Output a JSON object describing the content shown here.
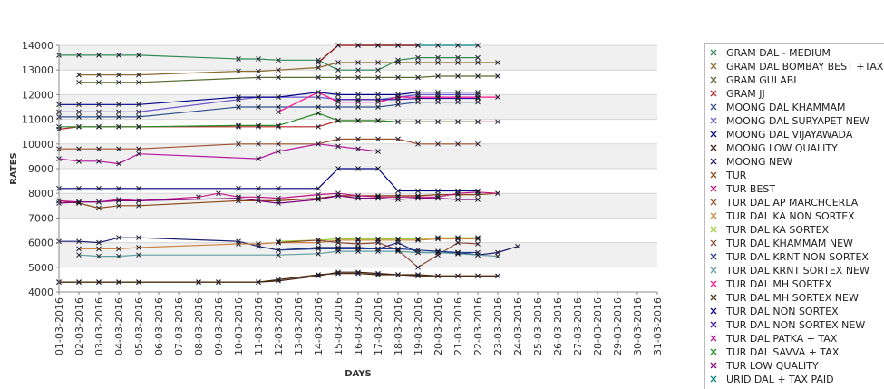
{
  "chart_data": {
    "type": "line",
    "xlabel": "DAYS",
    "ylabel": "RATES",
    "ylim": [
      4000,
      14000
    ],
    "yticks": [
      4000,
      5000,
      6000,
      7000,
      8000,
      9000,
      10000,
      11000,
      12000,
      13000,
      14000
    ],
    "grid": true,
    "legend_position": "right",
    "x": [
      "01-03-2016",
      "02-03-2016",
      "03-03-2016",
      "04-03-2016",
      "05-03-2016",
      "06-03-2016",
      "07-03-2016",
      "08-03-2016",
      "09-03-2016",
      "10-03-2016",
      "11-03-2016",
      "12-03-2016",
      "13-03-2016",
      "14-03-2016",
      "15-03-2016",
      "16-03-2016",
      "17-03-2016",
      "18-03-2016",
      "19-03-2016",
      "20-03-2016",
      "21-03-2016",
      "22-03-2016",
      "23-03-2016",
      "24-03-2016",
      "25-03-2016",
      "26-03-2016",
      "27-03-2016",
      "28-03-2016",
      "29-03-2016",
      "30-03-2016",
      "31-03-2016"
    ],
    "series": [
      {
        "name": "GRAM DAL - MEDIUM",
        "color": "#2e8b57",
        "values": [
          13600,
          13600,
          13600,
          13600,
          13600,
          null,
          null,
          null,
          null,
          13450,
          13450,
          13400,
          null,
          13400,
          13000,
          13000,
          13000,
          13400,
          13500,
          13500,
          13500,
          13500,
          null,
          null,
          null,
          null,
          null,
          null,
          null,
          null,
          null
        ]
      },
      {
        "name": "GRAM DAL BOMBAY BEST +TAX",
        "color": "#8b6b2e",
        "values": [
          null,
          12800,
          12800,
          12800,
          12800,
          null,
          null,
          null,
          null,
          12950,
          12950,
          13000,
          null,
          13100,
          13300,
          13300,
          13300,
          13300,
          13300,
          13300,
          13300,
          13300,
          13300,
          null,
          null,
          null,
          null,
          null,
          null,
          null,
          null
        ]
      },
      {
        "name": "GRAM GULABI",
        "color": "#556b2f",
        "values": [
          null,
          12500,
          12500,
          12500,
          12500,
          null,
          null,
          null,
          null,
          null,
          12700,
          12700,
          null,
          12700,
          12700,
          12700,
          12700,
          12700,
          12700,
          12750,
          12750,
          12750,
          12750,
          null,
          null,
          null,
          null,
          null,
          null,
          null,
          null
        ]
      },
      {
        "name": "GRAM JJ",
        "color": "#b22222",
        "values": [
          10600,
          10700,
          10700,
          10700,
          10700,
          null,
          null,
          null,
          null,
          10700,
          10700,
          10700,
          null,
          10700,
          10950,
          10950,
          10950,
          10900,
          10900,
          10900,
          10900,
          10900,
          10900,
          null,
          null,
          null,
          null,
          null,
          null,
          null,
          null
        ]
      },
      {
        "name": "MOONG DAL KHAMMAM",
        "color": "#2f4f8f",
        "values": [
          11100,
          11100,
          11100,
          11100,
          11100,
          null,
          null,
          null,
          null,
          11500,
          11500,
          11500,
          null,
          11500,
          11500,
          11500,
          11500,
          11600,
          11700,
          11700,
          11700,
          11700,
          null,
          null,
          null,
          null,
          null,
          null,
          null,
          null,
          null
        ]
      },
      {
        "name": "MOONG DAL SURYAPET NEW",
        "color": "#6a5acd",
        "values": [
          11300,
          11300,
          11300,
          11300,
          11300,
          null,
          null,
          null,
          null,
          11800,
          11900,
          11900,
          null,
          11900,
          11800,
          11800,
          11800,
          11900,
          12000,
          12000,
          12000,
          12000,
          null,
          null,
          null,
          null,
          null,
          null,
          null,
          null,
          null
        ]
      },
      {
        "name": "MOONG DAL VIJAYAWADA",
        "color": "#000080",
        "values": [
          8200,
          8200,
          8200,
          8200,
          8200,
          null,
          null,
          null,
          null,
          8200,
          8200,
          8200,
          null,
          8200,
          9000,
          9000,
          9000,
          8100,
          8100,
          8100,
          8100,
          8100,
          null,
          null,
          null,
          null,
          null,
          null,
          null,
          null,
          null
        ]
      },
      {
        "name": "MOONG LOW QUALITY",
        "color": "#3b1a0f",
        "values": [
          4400,
          4400,
          4400,
          4400,
          4400,
          null,
          null,
          4400,
          4400,
          null,
          4400,
          4450,
          null,
          4650,
          4800,
          4800,
          4750,
          4700,
          4650,
          4650,
          4650,
          4650,
          4650,
          null,
          null,
          null,
          null,
          null,
          null,
          null,
          null
        ]
      },
      {
        "name": "MOONG NEW",
        "color": "#191970",
        "values": [
          6050,
          6050,
          6000,
          6200,
          6200,
          null,
          null,
          null,
          null,
          6050,
          5850,
          5700,
          null,
          5800,
          5800,
          5800,
          5750,
          6000,
          5600,
          5600,
          5600,
          5500,
          5600,
          5850,
          null,
          null,
          null,
          null,
          null,
          null,
          null
        ]
      },
      {
        "name": "TUR",
        "color": "#8b4513",
        "values": [
          7700,
          7600,
          7400,
          7500,
          7500,
          null,
          null,
          null,
          null,
          7700,
          7700,
          7700,
          null,
          7800,
          7900,
          7900,
          7900,
          7900,
          7900,
          7950,
          7950,
          7950,
          8000,
          null,
          null,
          null,
          null,
          null,
          null,
          null,
          null
        ]
      },
      {
        "name": "TUR BEST",
        "color": "#c71585",
        "values": [
          7700,
          7650,
          7650,
          7750,
          7700,
          null,
          null,
          7850,
          8000,
          7850,
          7850,
          7800,
          null,
          7950,
          8000,
          7900,
          7850,
          7850,
          7850,
          7850,
          8000,
          8050,
          8000,
          null,
          null,
          null,
          null,
          null,
          null,
          null,
          null
        ]
      },
      {
        "name": "TUR DAL AP MARCHCERLA",
        "color": "#a0522d",
        "values": [
          9800,
          9800,
          9800,
          9800,
          9800,
          null,
          null,
          null,
          null,
          10000,
          10000,
          10000,
          null,
          10000,
          10200,
          10200,
          10200,
          10200,
          10000,
          10000,
          10000,
          10000,
          null,
          null,
          null,
          null,
          null,
          null,
          null,
          null,
          null
        ]
      },
      {
        "name": "TUR DAL KA NON SORTEX",
        "color": "#cd853f",
        "values": [
          null,
          5750,
          5750,
          5750,
          5800,
          null,
          null,
          null,
          null,
          5950,
          5950,
          6000,
          null,
          6000,
          6100,
          6100,
          6100,
          6100,
          6100,
          6150,
          6150,
          6150,
          null,
          null,
          null,
          null,
          null,
          null,
          null,
          null,
          null
        ]
      },
      {
        "name": "TUR DAL KA SORTEX",
        "color": "#9acd32",
        "values": [
          null,
          null,
          null,
          null,
          null,
          null,
          null,
          null,
          null,
          null,
          null,
          6050,
          null,
          6100,
          6150,
          6150,
          6150,
          6150,
          6150,
          6200,
          6200,
          6200,
          null,
          null,
          null,
          null,
          null,
          null,
          null,
          null,
          null
        ]
      },
      {
        "name": "TUR DAL KHAMMAM NEW",
        "color": "#8b4c39",
        "values": [
          null,
          null,
          null,
          null,
          null,
          null,
          null,
          null,
          null,
          null,
          null,
          6000,
          null,
          6100,
          6000,
          5950,
          6000,
          5700,
          5000,
          5500,
          6000,
          5950,
          null,
          null,
          null,
          null,
          null,
          null,
          null,
          null,
          null
        ]
      },
      {
        "name": "TUR DAL KRNT NON SORTEX",
        "color": "#1e3a8a",
        "values": [
          null,
          null,
          null,
          null,
          null,
          null,
          null,
          null,
          null,
          null,
          null,
          5700,
          null,
          5750,
          5750,
          5750,
          5750,
          5750,
          5700,
          5650,
          5600,
          5600,
          null,
          null,
          null,
          null,
          null,
          null,
          null,
          null,
          null
        ]
      },
      {
        "name": "TUR DAL KRNT SORTEX NEW",
        "color": "#5f9ea0",
        "values": [
          null,
          5500,
          5450,
          5450,
          5500,
          null,
          null,
          null,
          null,
          null,
          null,
          5500,
          null,
          5550,
          5650,
          5650,
          5650,
          5650,
          5600,
          5600,
          5550,
          5500,
          5450,
          null,
          null,
          null,
          null,
          null,
          null,
          null,
          null
        ]
      },
      {
        "name": "TUR DAL MH SORTEX",
        "color": "#ff1493",
        "values": [
          null,
          null,
          null,
          null,
          null,
          null,
          null,
          null,
          null,
          null,
          null,
          11300,
          null,
          12100,
          11700,
          11700,
          11700,
          11900,
          11900,
          11900,
          11900,
          11900,
          11900,
          null,
          null,
          null,
          null,
          null,
          null,
          null,
          null
        ]
      },
      {
        "name": "TUR DAL MH SORTEX NEW",
        "color": "#4a2c0a",
        "values": [
          4400,
          4400,
          4400,
          4400,
          4400,
          null,
          null,
          4400,
          4400,
          null,
          4400,
          4500,
          null,
          4700,
          4750,
          4750,
          4700,
          4700,
          4700,
          4650,
          4650,
          4650,
          4650,
          null,
          null,
          null,
          null,
          null,
          null,
          null,
          null
        ]
      },
      {
        "name": "TUR DAL NON SORTEX",
        "color": "#00008b",
        "values": [
          11600,
          11600,
          11600,
          11600,
          11600,
          null,
          null,
          null,
          null,
          11900,
          11900,
          11900,
          null,
          12100,
          12000,
          12000,
          12000,
          12000,
          12100,
          12100,
          12100,
          12100,
          null,
          null,
          null,
          null,
          null,
          null,
          null,
          null,
          null
        ]
      },
      {
        "name": "TUR DAL NON SORTEX NEW",
        "color": "#3a0ca3",
        "values": [
          null,
          null,
          null,
          null,
          null,
          null,
          null,
          null,
          null,
          null,
          null,
          null,
          null,
          null,
          11800,
          11800,
          11800,
          11800,
          11850,
          11850,
          11850,
          11850,
          null,
          null,
          null,
          null,
          null,
          null,
          null,
          null,
          null
        ]
      },
      {
        "name": "TUR DAL PATKA + TAX",
        "color": "#b5179e",
        "values": [
          9400,
          9300,
          9300,
          9200,
          9600,
          null,
          null,
          null,
          null,
          null,
          9400,
          9700,
          null,
          10000,
          9900,
          9800,
          9700,
          null,
          null,
          null,
          null,
          null,
          null,
          null,
          null,
          null,
          null,
          null,
          null,
          null,
          null
        ]
      },
      {
        "name": "TUR DAL SAVVA + TAX",
        "color": "#228b22",
        "values": [
          10700,
          10700,
          10700,
          10700,
          10700,
          null,
          null,
          null,
          null,
          10750,
          10750,
          10750,
          null,
          11250,
          10950,
          10950,
          10950,
          10900,
          10900,
          10900,
          10900,
          10900,
          null,
          null,
          null,
          null,
          null,
          null,
          null,
          null,
          null
        ]
      },
      {
        "name": "TUR LOW QUALITY",
        "color": "#800080",
        "values": [
          7600,
          7650,
          7650,
          7700,
          7700,
          null,
          null,
          null,
          null,
          7800,
          7700,
          7600,
          null,
          7750,
          7900,
          7800,
          7800,
          7750,
          7800,
          7800,
          7750,
          7750,
          null,
          null,
          null,
          null,
          null,
          null,
          null,
          null,
          null
        ]
      },
      {
        "name": "URID DAL + TAX PAID",
        "color": "#008080",
        "values": [
          null,
          null,
          null,
          null,
          null,
          null,
          null,
          null,
          null,
          null,
          null,
          null,
          null,
          null,
          null,
          14000,
          14000,
          14000,
          14000,
          14000,
          14000,
          14000,
          null,
          null,
          null,
          null,
          null,
          null,
          null,
          null,
          null
        ]
      },
      {
        "name": "",
        "color": "#8b0000",
        "values": [
          null,
          null,
          null,
          null,
          null,
          null,
          null,
          null,
          null,
          null,
          null,
          null,
          null,
          13300,
          14000,
          14000,
          14000,
          14000,
          14000,
          null,
          null,
          null,
          null,
          null,
          null,
          null,
          null,
          null,
          null,
          null,
          null
        ]
      }
    ]
  }
}
